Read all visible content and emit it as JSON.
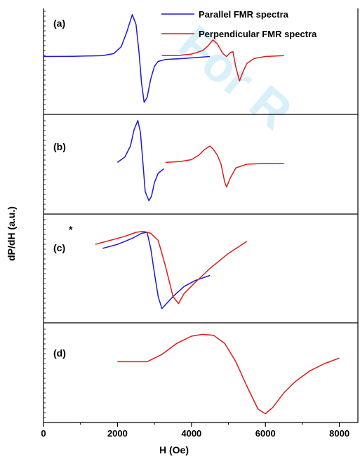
{
  "chart_data": {
    "type": "line",
    "xlabel": "H (Oe)",
    "ylabel": "dP/dH (a.u.)",
    "xlim": [
      0,
      8500
    ],
    "x_ticks": [
      0,
      2000,
      4000,
      6000,
      8000
    ],
    "x_tick_labels": [
      "0",
      "2000",
      "4000",
      "6000",
      "8000"
    ],
    "grid": false,
    "legend_position": "top-right",
    "legend": [
      {
        "name": "Parallel FMR spectra",
        "color": "#1a1adb"
      },
      {
        "name": "Perpendicular FMR spectra",
        "color": "#e01b1b"
      }
    ],
    "panels": [
      {
        "label": "(a)",
        "ylim": [
          0,
          1
        ],
        "series": [
          {
            "name": "Parallel FMR spectra",
            "color": "#1a1adb",
            "x": [
              0,
              800,
              1600,
              1900,
              2100,
              2250,
              2400,
              2500,
              2580,
              2650,
              2720,
              2800,
              2900,
              3000,
              3100,
              3300,
              3800,
              4500
            ],
            "y": [
              0.55,
              0.552,
              0.56,
              0.58,
              0.65,
              0.8,
              0.98,
              0.88,
              0.6,
              0.28,
              0.08,
              0.13,
              0.32,
              0.45,
              0.5,
              0.52,
              0.53,
              0.55
            ]
          },
          {
            "name": "Perpendicular FMR spectra",
            "color": "#e01b1b",
            "x": [
              3200,
              3600,
              4000,
              4300,
              4450,
              4580,
              4700,
              4850,
              4950,
              5050,
              5120,
              5200,
              5300,
              5400,
              5500,
              5700,
              6000,
              6500
            ],
            "y": [
              0.56,
              0.56,
              0.575,
              0.61,
              0.66,
              0.72,
              0.68,
              0.58,
              0.55,
              0.59,
              0.6,
              0.44,
              0.3,
              0.4,
              0.48,
              0.53,
              0.55,
              0.56
            ]
          }
        ]
      },
      {
        "label": "(b)",
        "ylim": [
          0,
          1
        ],
        "series": [
          {
            "name": "Parallel FMR spectra",
            "color": "#1a1adb",
            "x": [
              2000,
              2200,
              2350,
              2450,
              2550,
              2620,
              2680,
              2750,
              2850,
              2920,
              3000,
              3100,
              3250
            ],
            "y": [
              0.52,
              0.58,
              0.7,
              0.88,
              0.98,
              0.85,
              0.55,
              0.2,
              0.1,
              0.15,
              0.3,
              0.4,
              0.45
            ]
          },
          {
            "name": "Perpendicular FMR spectra",
            "color": "#e01b1b",
            "x": [
              3300,
              3700,
              4000,
              4200,
              4350,
              4500,
              4600,
              4700,
              4800,
              4900,
              4950,
              5050,
              5200,
              5500,
              6000,
              6500
            ],
            "y": [
              0.52,
              0.53,
              0.55,
              0.6,
              0.66,
              0.7,
              0.66,
              0.6,
              0.5,
              0.3,
              0.25,
              0.35,
              0.46,
              0.5,
              0.51,
              0.51
            ]
          }
        ]
      },
      {
        "label": "(c)",
        "ylim": [
          0,
          1
        ],
        "series": [
          {
            "name": "Parallel FMR spectra",
            "color": "#1a1adb",
            "x": [
              1600,
              2000,
              2400,
              2650,
              2800,
              2900,
              3000,
              3100,
              3200,
              3300,
              3500,
              3800,
              4100,
              4500
            ],
            "y": [
              0.7,
              0.74,
              0.8,
              0.85,
              0.86,
              0.7,
              0.45,
              0.22,
              0.1,
              0.14,
              0.22,
              0.32,
              0.38,
              0.43
            ]
          },
          {
            "name": "Perpendicular FMR spectra",
            "color": "#e01b1b",
            "x": [
              1400,
              1800,
              2200,
              2500,
              2700,
              2900,
              3100,
              3300,
              3500,
              3650,
              3800,
              4100,
              4500,
              5000,
              5500
            ],
            "y": [
              0.74,
              0.78,
              0.82,
              0.86,
              0.87,
              0.85,
              0.78,
              0.52,
              0.22,
              0.15,
              0.25,
              0.36,
              0.5,
              0.65,
              0.77
            ]
          }
        ]
      },
      {
        "label": "(d)",
        "ylim": [
          0,
          1
        ],
        "series": [
          {
            "name": "Perpendicular FMR spectra",
            "color": "#e01b1b",
            "x": [
              2000,
              2800,
              3200,
              3600,
              4000,
              4300,
              4600,
              4900,
              5200,
              5500,
              5800,
              6000,
              6200,
              6500,
              6800,
              7200,
              7600,
              8000
            ],
            "y": [
              0.62,
              0.62,
              0.7,
              0.82,
              0.9,
              0.92,
              0.91,
              0.82,
              0.62,
              0.35,
              0.1,
              0.05,
              0.12,
              0.28,
              0.4,
              0.52,
              0.6,
              0.66
            ]
          }
        ]
      }
    ],
    "annotations": [
      "*"
    ]
  }
}
